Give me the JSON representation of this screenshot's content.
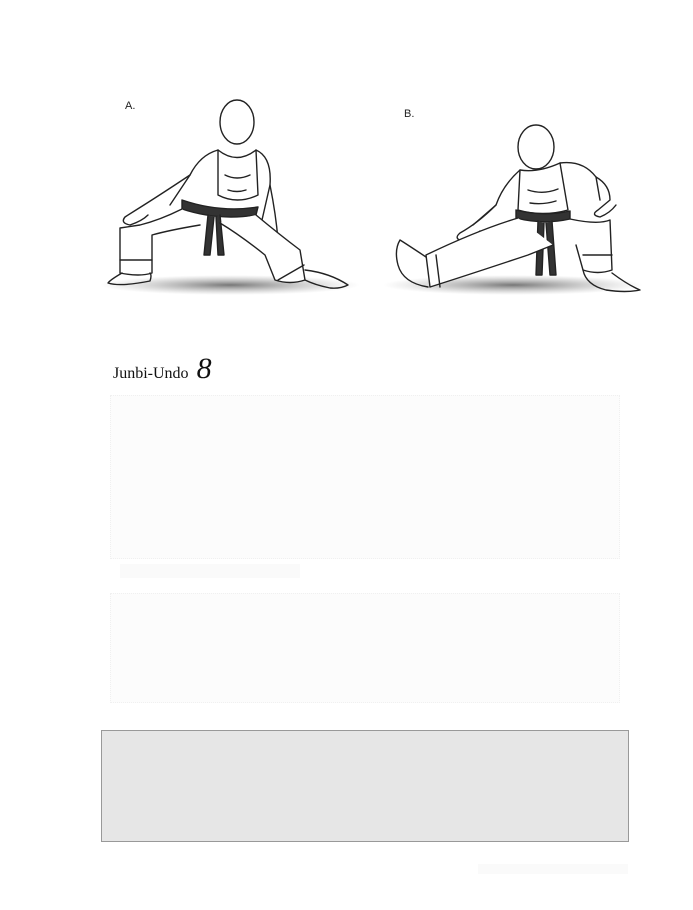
{
  "figures": {
    "a": {
      "label": "A."
    },
    "b": {
      "label": "B."
    }
  },
  "section": {
    "title": "Junbi-Undo",
    "number": "8"
  },
  "icons": [
    "karateka-side-stretch-a-icon",
    "karateka-side-stretch-b-icon"
  ],
  "colors": {
    "info_box_bg": "#e6e6e6",
    "info_box_border": "#999999",
    "text": "#111111"
  }
}
